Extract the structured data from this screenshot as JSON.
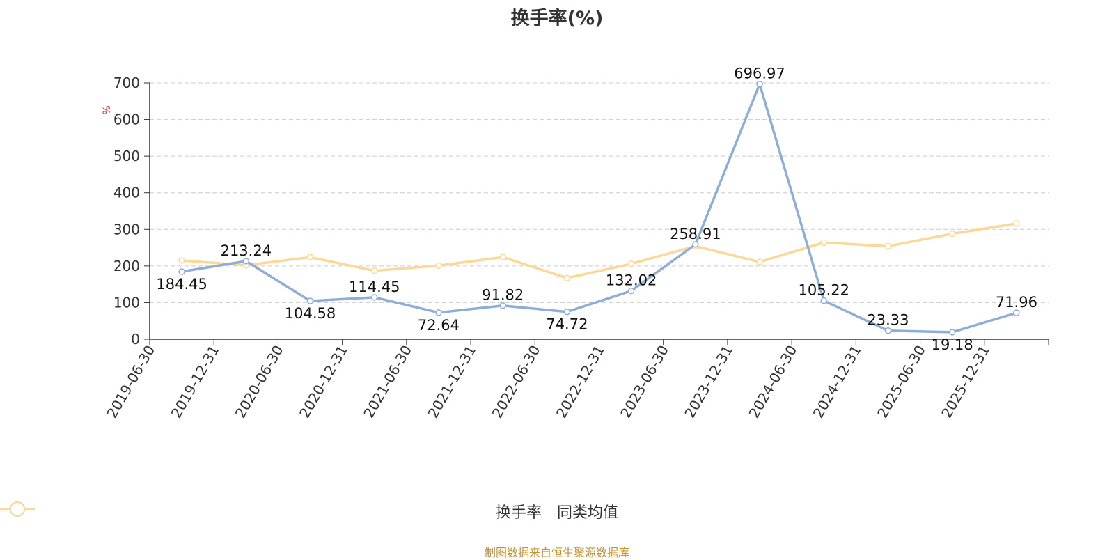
{
  "chart_data": {
    "type": "line",
    "title": "换手率(%)",
    "ylabel": "%",
    "xlabel": "",
    "ylim": [
      0,
      700
    ],
    "yticks": [
      0,
      100,
      200,
      300,
      400,
      500,
      600,
      700
    ],
    "grid": true,
    "legend_position": "bottom",
    "categories": [
      "2019-06-30",
      "2019-12-31",
      "2020-06-30",
      "2020-12-31",
      "2021-06-30",
      "2021-12-31",
      "2022-06-30",
      "2022-12-31",
      "2023-06-30",
      "2023-12-31",
      "2024-06-30",
      "2024-12-31",
      "2025-06-30",
      "2025-12-31"
    ],
    "series": [
      {
        "name": "换手率",
        "color": "#8eadd8",
        "show_labels": true,
        "values": [
          184.45,
          213.24,
          104.58,
          114.45,
          72.64,
          91.82,
          74.72,
          132.02,
          258.91,
          696.97,
          105.22,
          23.33,
          19.18,
          71.96
        ]
      },
      {
        "name": "同类均值",
        "color": "#fdd795",
        "show_labels": false,
        "values": [
          215,
          202,
          224,
          187,
          201,
          224,
          167,
          206,
          254,
          211,
          264,
          254,
          288,
          316
        ]
      }
    ]
  },
  "footer": "制图数据来自恒生聚源数据库"
}
